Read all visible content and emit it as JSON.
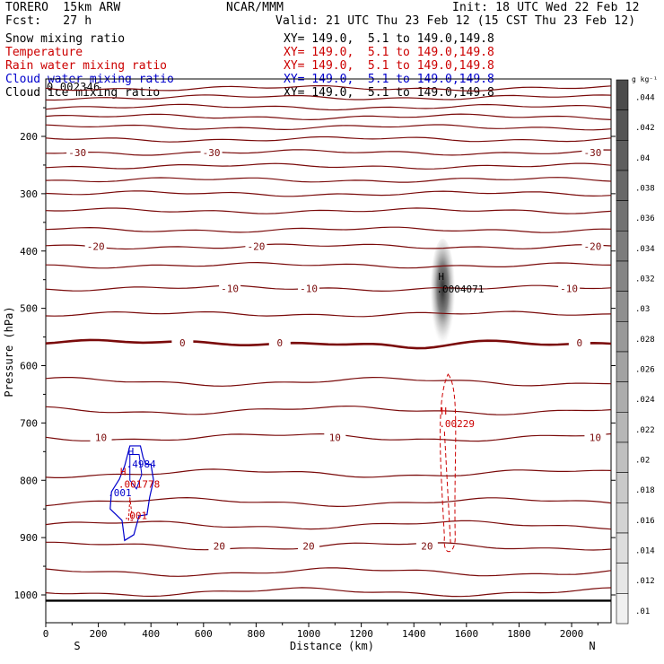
{
  "header": {
    "model": "TORERO  15km ARW",
    "center": "NCAR/MMM",
    "init": "Init: 18 UTC Wed 22 Feb 12",
    "fcst": "Fcst:   27 h",
    "valid": "Valid: 21 UTC Thu 23 Feb 12 (15 CST Thu 23 Feb 12)",
    "overlap_text": "0.002346"
  },
  "legend": [
    {
      "label": "Snow mixing ratio",
      "xy": "XY= 149.0,  5.1 to 149.0,149.8",
      "color": "#000000"
    },
    {
      "label": "Temperature",
      "xy": "XY= 149.0,  5.1 to 149.0,149.8",
      "color": "#cc0000"
    },
    {
      "label": "Rain water mixing ratio",
      "xy": "XY= 149.0,  5.1 to 149.0,149.8",
      "color": "#cc0000"
    },
    {
      "label": "Cloud water mixing ratio",
      "xy": "XY= 149.0,  5.1 to 149.0,149.8",
      "color": "#0000cc"
    },
    {
      "label": "Cloud ice mixing ratio",
      "xy": "XY= 149.0,  5.1 to 149.0,149.8",
      "color": "#000000"
    }
  ],
  "colors": {
    "temperature": "#7a0a0a",
    "rain": "#cc0000",
    "cloud_water": "#0000cc",
    "snow": "#000000"
  },
  "chart_data": {
    "type": "contour",
    "xlabel": "Distance (km)",
    "ylabel": "Pressure (hPa)",
    "xlim": [
      0,
      2150
    ],
    "ylim": [
      1050,
      100
    ],
    "x_ticks": [
      0,
      200,
      400,
      600,
      800,
      1000,
      1200,
      1400,
      1600,
      1800,
      2000
    ],
    "y_ticks": [
      200,
      300,
      400,
      500,
      600,
      700,
      800,
      900,
      1000
    ],
    "x_end_labels": {
      "left": "S",
      "right": "N"
    },
    "surface_pressure_hPa": 1010,
    "temperature_contours": [
      {
        "p": 116
      },
      {
        "p": 132
      },
      {
        "p": 149
      },
      {
        "p": 166
      },
      {
        "p": 184
      },
      {
        "p": 205
      },
      {
        "p": 228,
        "labels": [
          {
            "x": 120,
            "text": "-30"
          },
          {
            "x": 630,
            "text": "-30"
          },
          {
            "x": 2080,
            "text": "-30"
          }
        ]
      },
      {
        "p": 252
      },
      {
        "p": 276
      },
      {
        "p": 300
      },
      {
        "p": 330
      },
      {
        "p": 363
      },
      {
        "p": 392,
        "labels": [
          {
            "x": 190,
            "text": "-20"
          },
          {
            "x": 800,
            "text": "-20"
          },
          {
            "x": 2080,
            "text": "-20"
          }
        ]
      },
      {
        "p": 425
      },
      {
        "p": 465,
        "labels": [
          {
            "x": 700,
            "text": "-10"
          },
          {
            "x": 1000,
            "text": "-10"
          },
          {
            "x": 1990,
            "text": "-10"
          }
        ]
      },
      {
        "p": 510
      },
      {
        "p": 560,
        "bold": true,
        "labels": [
          {
            "x": 520,
            "text": "0"
          },
          {
            "x": 890,
            "text": "0"
          },
          {
            "x": 2030,
            "text": "0"
          }
        ]
      },
      {
        "p": 628
      },
      {
        "p": 678
      },
      {
        "p": 725,
        "labels": [
          {
            "x": 210,
            "text": "10"
          },
          {
            "x": 1100,
            "text": "10"
          },
          {
            "x": 2090,
            "text": "10"
          }
        ]
      },
      {
        "p": 788
      },
      {
        "p": 838
      },
      {
        "p": 878
      },
      {
        "p": 915,
        "labels": [
          {
            "x": 660,
            "text": "20"
          },
          {
            "x": 1000,
            "text": "20"
          },
          {
            "x": 1450,
            "text": "20"
          }
        ]
      },
      {
        "p": 960
      },
      {
        "p": 995
      }
    ],
    "maxima": [
      {
        "field": "Cloud ice mixing ratio",
        "x": 1520,
        "p": 460,
        "label": "H",
        "value": ".0004071"
      },
      {
        "field": "Rain water mixing ratio",
        "x": 1530,
        "p": 695,
        "label": "H",
        "value": ".00229"
      },
      {
        "field": "Cloud water mixing ratio",
        "x": 340,
        "p": 765,
        "label": "H",
        "value": ".4984"
      },
      {
        "field": "Cloud water mixing ratio",
        "x": 270,
        "p": 815,
        "value": ".001"
      },
      {
        "field": "Rain water mixing ratio",
        "x": 310,
        "p": 800,
        "label": "H",
        "value": ".001778"
      },
      {
        "field": "Rain water mixing ratio",
        "x": 330,
        "p": 855,
        "value": ".001"
      }
    ],
    "colorbar": {
      "unit": "g kg⁻¹",
      "labels": [
        ".044",
        ".042",
        ".04",
        ".038",
        ".036",
        ".034",
        ".032",
        ".03",
        ".028",
        ".026",
        ".024",
        ".022",
        ".02",
        ".018",
        ".016",
        ".014",
        ".012",
        ".01"
      ]
    }
  }
}
